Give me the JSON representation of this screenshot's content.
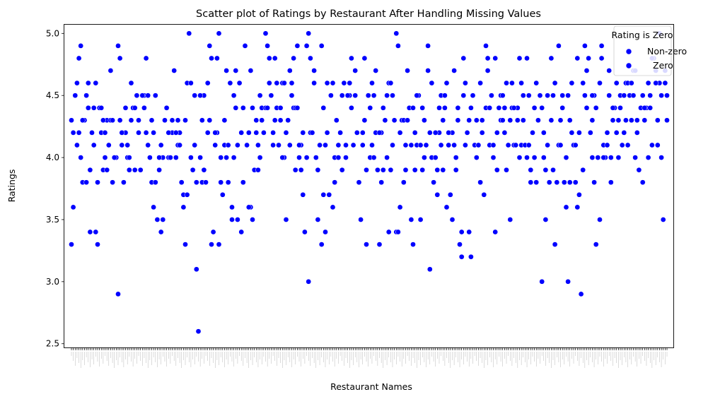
{
  "chart_data": {
    "type": "scatter",
    "title": "Scatter plot of Ratings by Restaurant After Handling Missing Values",
    "xlabel": "Restaurant Names",
    "ylabel": "Ratings",
    "ylim": [
      2.47,
      5.07
    ],
    "yticks": [
      "2.5",
      "3.0",
      "3.5",
      "4.0",
      "4.5",
      "5.0"
    ],
    "grid": false,
    "legend": {
      "title": "Rating is Zero",
      "placement": "top-right",
      "entries": [
        "Non-zero",
        "Zero"
      ]
    },
    "point_color": "#0000ff",
    "n_categories": 320,
    "series": [
      {
        "name": "Non-zero",
        "values": [
          3.3,
          3.6,
          4.5,
          4.6,
          4.2,
          4.0,
          3.8,
          4.3,
          4.5,
          4.4,
          3.4,
          4.2,
          4.1,
          3.4,
          3.3,
          4.4,
          4.2,
          3.9,
          4.2,
          4.3,
          4.1,
          4.7,
          3.8,
          4.0,
          4.0,
          2.9,
          4.3,
          4.1,
          3.8,
          4.2,
          4.1,
          3.9,
          4.6,
          4.4,
          4.4,
          4.5,
          4.2,
          3.9,
          4.5,
          4.5,
          4.2,
          4.8,
          4.5,
          4.0,
          3.8,
          4.2,
          4.5,
          3.5,
          3.9,
          4.1,
          4.0,
          4.3,
          4.4,
          4.0,
          4.0,
          4.2,
          4.7,
          4.0,
          4.3,
          4.2,
          3.8,
          3.6,
          3.3,
          4.6,
          5.0,
          4.0,
          3.9,
          4.1,
          3.1,
          2.6,
          4.0,
          3.8,
          4.5,
          3.8,
          4.2,
          4.3,
          3.3,
          3.4,
          4.1,
          4.2,
          3.3,
          3.8,
          3.7,
          4.3,
          4.7,
          3.8,
          4.6,
          3.6,
          4.0,
          4.7,
          4.1,
          4.6,
          3.4,
          3.8,
          4.9,
          4.1,
          4.2,
          3.6,
          3.5,
          3.9,
          4.3,
          4.1,
          4.0,
          4.4,
          4.2,
          4.4,
          4.4,
          4.8,
          4.5,
          4.1,
          4.3,
          4.4,
          4.1,
          4.3,
          4.6,
          4.0,
          4.2,
          4.3,
          4.1,
          4.5,
          4.4,
          4.4,
          3.9,
          4.9,
          4.0,
          4.1,
          3.7,
          3.4,
          4.0,
          3.0,
          4.2,
          4.2,
          4.6,
          4.0,
          3.5,
          4.1,
          3.3,
          3.7,
          3.4,
          4.2,
          3.7,
          4.5,
          3.6,
          4.0,
          4.3,
          4.1,
          4.2,
          4.5,
          4.6,
          4.0,
          4.5,
          4.5,
          4.4,
          4.1,
          4.5,
          4.2,
          3.8,
          3.5,
          4.2,
          4.8,
          3.3,
          4.5,
          4.0,
          4.1,
          4.5,
          4.2,
          3.9,
          3.3,
          4.2,
          3.9,
          4.3,
          4.5,
          4.6,
          3.9,
          4.1,
          4.3,
          3.4,
          3.4,
          3.6,
          4.3,
          4.3,
          4.1,
          4.7,
          4.4,
          3.5,
          3.3,
          4.2,
          4.1,
          4.5,
          4.1,
          3.9,
          4.3,
          4.1,
          4.9,
          4.2,
          4.0,
          3.8,
          4.0,
          3.9,
          4.2,
          4.5,
          4.3,
          3.9,
          4.4,
          4.6,
          4.1,
          3.7,
          4.2,
          4.1,
          4.0,
          4.3,
          3.3,
          3.4,
          4.5,
          4.1,
          4.2,
          3.4,
          3.2,
          4.5,
          4.1,
          4.3,
          4.1,
          3.8,
          4.2,
          3.7,
          4.4,
          4.7,
          4.1,
          4.5,
          4.1,
          3.4,
          4.2,
          4.4,
          4.3,
          4.3,
          4.2,
          3.9,
          4.1,
          4.3,
          4.6,
          4.1,
          4.1,
          4.4,
          4.8,
          4.1,
          4.3,
          4.1,
          4.0,
          4.1,
          3.9,
          4.2,
          4.0,
          3.8,
          4.3,
          4.5,
          4.4,
          4.2,
          3.9,
          4.1,
          3.8,
          4.3,
          3.9,
          3.3,
          3.8,
          4.1,
          4.3,
          4.5,
          3.8,
          3.6,
          3.0,
          3.8,
          4.2,
          4.1,
          3.8,
          3.6,
          4.2,
          2.9,
          3.9,
          4.9,
          4.7,
          4.8,
          4.2,
          4.0,
          4.3,
          4.5,
          3.3,
          4.0,
          3.5,
          4.8,
          4.1,
          4.0,
          4.2,
          4.5,
          3.8,
          4.3,
          4.4,
          4.2,
          4.0,
          4.5,
          4.1,
          4.2,
          4.3,
          4.1,
          4.5,
          4.3,
          4.7,
          4.0,
          4.3,
          3.9,
          4.4,
          3.8,
          4.3,
          4.4,
          4.0,
          4.5,
          4.1,
          4.8,
          4.7,
          4.1,
          4.6,
          4.0,
          3.5,
          4.7,
          4.5
        ]
      },
      {
        "name": "Zero",
        "values": [
          4.3,
          4.2,
          4.1,
          4.8,
          4.9,
          4.3,
          3.8,
          4.6,
          3.9,
          4.4,
          4.6,
          3.8,
          4.4,
          4.3,
          4.0,
          3.9,
          4.3,
          4.3,
          4.0,
          4.9,
          4.8,
          4.2,
          4.4,
          4.0,
          4.0,
          4.3,
          3.9,
          4.5,
          4.3,
          4.5,
          4.4,
          4.2,
          4.1,
          4.3,
          3.6,
          3.8,
          4.0,
          3.4,
          3.5,
          4.4,
          4.2,
          4.0,
          4.3,
          4.2,
          4.1,
          4.1,
          3.7,
          4.3,
          3.7,
          4.6,
          3.9,
          4.5,
          3.8,
          4.5,
          4.3,
          3.9,
          4.6,
          4.9,
          4.8,
          4.2,
          4.8,
          5.0,
          4.0,
          4.1,
          4.0,
          4.1,
          3.5,
          4.5,
          4.4,
          3.5,
          4.2,
          4.4,
          4.9,
          3.6,
          4.7,
          4.4,
          4.2,
          3.9,
          4.5,
          4.3,
          5.0,
          4.9,
          4.6,
          4.2,
          4.8,
          4.6,
          4.4,
          4.0,
          4.6,
          3.5,
          4.7,
          4.6,
          4.8,
          4.4,
          4.1,
          3.9,
          4.2,
          4.9,
          5.0,
          4.8,
          4.7,
          4.0,
          3.9,
          4.9,
          4.4,
          4.1,
          4.6,
          4.5,
          4.6,
          3.8,
          4.0,
          4.2,
          3.9,
          4.1,
          4.5,
          4.6,
          4.8,
          4.7,
          4.2,
          3.8,
          4.1,
          4.3,
          3.9,
          4.4,
          4.6,
          4.0,
          4.7,
          4.2,
          3.8,
          4.4,
          4.0,
          3.4,
          4.6,
          4.5,
          5.0,
          4.9,
          4.2,
          3.8,
          3.9,
          4.3,
          4.1,
          4.4,
          3.9,
          4.5,
          3.5,
          4.4,
          4.0,
          4.7,
          3.1,
          4.6,
          4.2,
          3.7,
          4.4,
          4.1,
          4.5,
          3.6,
          4.2,
          3.5,
          4.7,
          3.9,
          4.4,
          3.2,
          4.8,
          4.6,
          4.3,
          4.4,
          4.5,
          4.0,
          4.1,
          4.6,
          4.3,
          4.9,
          4.8,
          4.4,
          4.0,
          4.8,
          3.9,
          4.5,
          4.5,
          4.4,
          4.6,
          3.5,
          4.4,
          4.4,
          4.3,
          4.0,
          4.6,
          4.5,
          4.8,
          4.5,
          3.8,
          4.4,
          4.6,
          4.3,
          3.0,
          4.0,
          3.5,
          4.5,
          4.8,
          4.5,
          4.6,
          4.9,
          4.1,
          4.4,
          4.0,
          4.5,
          4.3,
          4.6,
          4.1,
          4.8,
          3.7,
          4.6,
          4.5,
          4.4,
          4.2,
          4.5,
          3.8,
          4.4,
          4.6,
          4.9,
          4.0,
          4.1,
          4.7,
          4.0,
          4.4,
          4.6,
          4.3,
          4.4,
          4.5,
          4.6,
          4.6,
          4.6,
          4.5,
          4.7,
          4.2,
          4.4,
          4.5,
          4.4,
          4.6,
          4.4,
          4.8,
          4.6,
          4.3,
          5.0,
          4.5,
          4.6,
          4.3
        ]
      }
    ]
  }
}
